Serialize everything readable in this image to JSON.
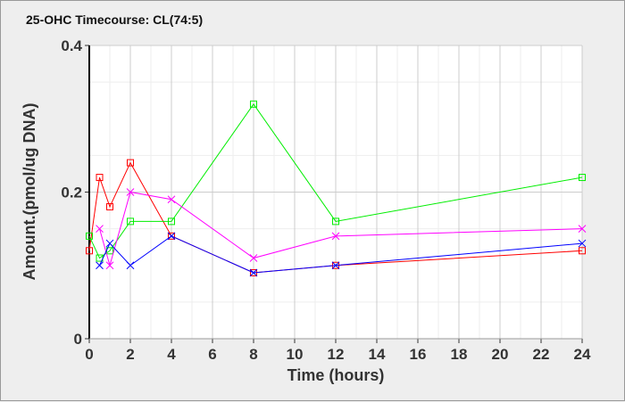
{
  "chart_data": {
    "type": "line",
    "title": "25-OHC Timecourse: CL(74:5)",
    "xlabel": "Time (hours)",
    "ylabel": "Amount.(pmol/ug DNA)",
    "xlim": [
      0,
      24
    ],
    "ylim": [
      0,
      0.4
    ],
    "xticks": [
      0,
      2,
      4,
      6,
      8,
      10,
      12,
      14,
      16,
      18,
      20,
      22,
      24
    ],
    "yticks": [
      0,
      0.2,
      0.4
    ],
    "ytick_labels": [
      "0",
      "0.2",
      "0.4"
    ],
    "grid": true,
    "series": [
      {
        "color": "#ff0000",
        "marker": "square",
        "x": [
          0,
          0.5,
          1,
          2,
          4,
          8,
          12,
          24
        ],
        "y": [
          0.12,
          0.22,
          0.18,
          0.24,
          0.14,
          0.09,
          0.1,
          0.12
        ]
      },
      {
        "color": "#00ee00",
        "marker": "square",
        "x": [
          0,
          0.5,
          1,
          2,
          4,
          8,
          12,
          24
        ],
        "y": [
          0.14,
          0.11,
          0.12,
          0.16,
          0.16,
          0.32,
          0.16,
          0.22
        ]
      },
      {
        "color": "#ff00ff",
        "marker": "x",
        "x": [
          0.5,
          1,
          2,
          4,
          8,
          12,
          24
        ],
        "y": [
          0.15,
          0.1,
          0.2,
          0.19,
          0.11,
          0.14,
          0.15
        ]
      },
      {
        "color": "#0000ff",
        "marker": "x",
        "x": [
          0.5,
          1,
          2,
          4,
          8,
          12,
          24
        ],
        "y": [
          0.1,
          0.13,
          0.1,
          0.14,
          0.09,
          0.1,
          0.13
        ]
      }
    ]
  }
}
